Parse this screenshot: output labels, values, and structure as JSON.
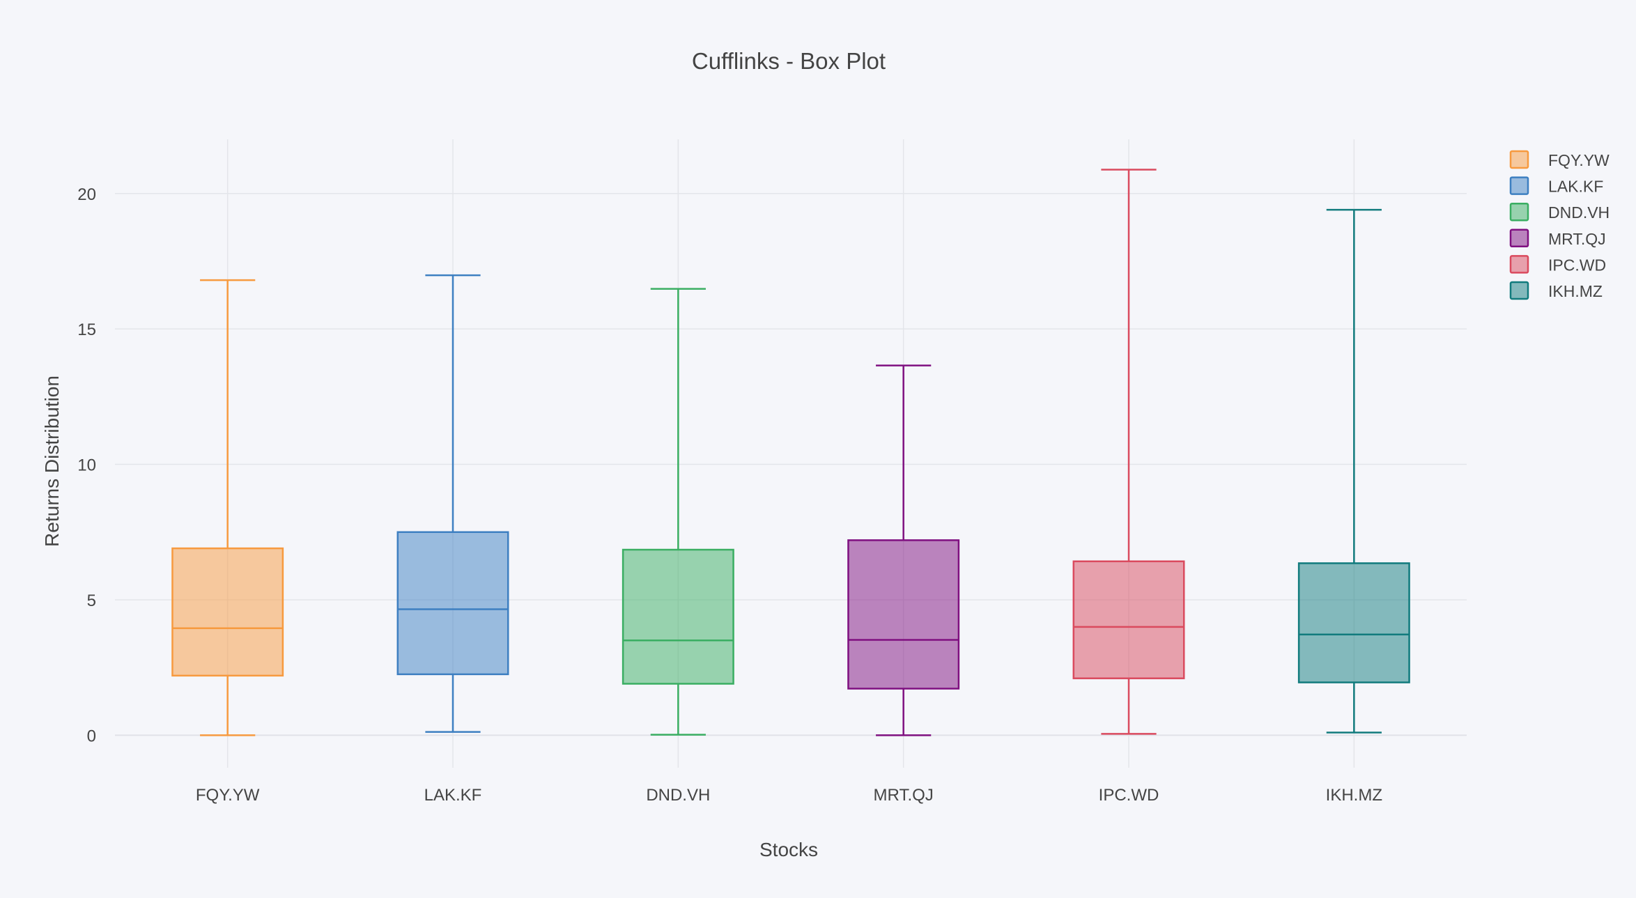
{
  "chart_data": {
    "type": "box",
    "title": "Cufflinks - Box Plot",
    "xlabel": "Stocks",
    "ylabel": "Returns Distribution",
    "ylim": [
      -1.2,
      22
    ],
    "yticks": [
      0,
      5,
      10,
      15,
      20
    ],
    "grid": true,
    "legend_position": "top-right",
    "categories": [
      "FQY.YW",
      "LAK.KF",
      "DND.VH",
      "MRT.QJ",
      "IPC.WD",
      "IKH.MZ"
    ],
    "series": [
      {
        "name": "FQY.YW",
        "color": "#f79a3f",
        "min": 0.0,
        "q1": 2.2,
        "median": 3.95,
        "q3": 6.9,
        "max": 16.8
      },
      {
        "name": "LAK.KF",
        "color": "#3d7fc1",
        "min": 0.12,
        "q1": 2.25,
        "median": 4.65,
        "q3": 7.5,
        "max": 16.98
      },
      {
        "name": "DND.VH",
        "color": "#3aae62",
        "min": 0.02,
        "q1": 1.9,
        "median": 3.5,
        "q3": 6.85,
        "max": 16.48
      },
      {
        "name": "MRT.QJ",
        "color": "#7f1080",
        "min": 0.0,
        "q1": 1.72,
        "median": 3.52,
        "q3": 7.2,
        "max": 13.65
      },
      {
        "name": "IPC.WD",
        "color": "#da4a5e",
        "min": 0.05,
        "q1": 2.1,
        "median": 4.0,
        "q3": 6.42,
        "max": 20.88
      },
      {
        "name": "IKH.MZ",
        "color": "#117b7d",
        "min": 0.1,
        "q1": 1.95,
        "median": 3.72,
        "q3": 6.35,
        "max": 19.4
      }
    ]
  }
}
